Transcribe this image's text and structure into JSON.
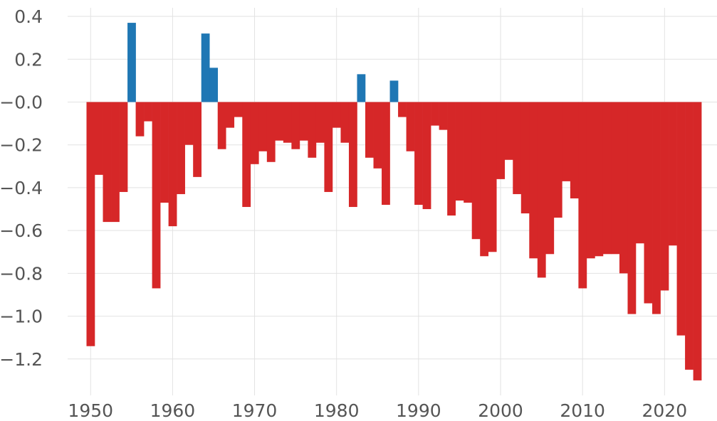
{
  "chart_data": {
    "type": "bar",
    "title": "",
    "xlabel": "",
    "ylabel": "",
    "xlim": [
      1947.2,
      2026.4
    ],
    "ylim": [
      -1.37,
      0.44
    ],
    "grid": true,
    "legend": "none",
    "colors": {
      "positive": "#1f77b4",
      "negative": "#d62728",
      "grid": "#e2e2e2",
      "tick_text": "#555555"
    },
    "y_ticks": [
      {
        "value": 0.4,
        "label": "0.4"
      },
      {
        "value": 0.2,
        "label": "0.2"
      },
      {
        "value": 0.0,
        "label": "−0.0"
      },
      {
        "value": -0.2,
        "label": "−0.2"
      },
      {
        "value": -0.4,
        "label": "−0.4"
      },
      {
        "value": -0.6,
        "label": "−0.6"
      },
      {
        "value": -0.8,
        "label": "−0.8"
      },
      {
        "value": -1.0,
        "label": "−1.0"
      },
      {
        "value": -1.2,
        "label": "−1.2"
      }
    ],
    "x_ticks": [
      {
        "value": 1950,
        "label": "1950"
      },
      {
        "value": 1960,
        "label": "1960"
      },
      {
        "value": 1970,
        "label": "1970"
      },
      {
        "value": 1980,
        "label": "1980"
      },
      {
        "value": 1990,
        "label": "1990"
      },
      {
        "value": 2000,
        "label": "2000"
      },
      {
        "value": 2010,
        "label": "2010"
      },
      {
        "value": 2020,
        "label": "2020"
      }
    ],
    "x": [
      1950,
      1951,
      1952,
      1953,
      1954,
      1955,
      1956,
      1957,
      1958,
      1959,
      1960,
      1961,
      1962,
      1963,
      1964,
      1965,
      1966,
      1967,
      1968,
      1969,
      1970,
      1971,
      1972,
      1973,
      1974,
      1975,
      1976,
      1977,
      1978,
      1979,
      1980,
      1981,
      1982,
      1983,
      1984,
      1985,
      1986,
      1987,
      1988,
      1989,
      1990,
      1991,
      1992,
      1993,
      1994,
      1995,
      1996,
      1997,
      1998,
      1999,
      2000,
      2001,
      2002,
      2003,
      2004,
      2005,
      2006,
      2007,
      2008,
      2009,
      2010,
      2011,
      2012,
      2013,
      2014,
      2015,
      2016,
      2017,
      2018,
      2019,
      2020,
      2021,
      2022,
      2023,
      2024
    ],
    "values": [
      -1.14,
      -0.34,
      -0.56,
      -0.56,
      -0.42,
      0.37,
      -0.16,
      -0.09,
      -0.87,
      -0.47,
      -0.58,
      -0.43,
      -0.2,
      -0.35,
      0.32,
      0.16,
      -0.22,
      -0.12,
      -0.07,
      -0.49,
      -0.29,
      -0.23,
      -0.28,
      -0.18,
      -0.19,
      -0.22,
      -0.18,
      -0.26,
      -0.19,
      -0.42,
      -0.12,
      -0.19,
      -0.49,
      0.13,
      -0.26,
      -0.31,
      -0.48,
      0.1,
      -0.07,
      -0.23,
      -0.48,
      -0.5,
      -0.11,
      -0.13,
      -0.53,
      -0.46,
      -0.47,
      -0.64,
      -0.72,
      -0.7,
      -0.36,
      -0.27,
      -0.43,
      -0.52,
      -0.73,
      -0.82,
      -0.71,
      -0.54,
      -0.37,
      -0.45,
      -0.87,
      -0.73,
      -0.72,
      -0.71,
      -0.71,
      -0.8,
      -0.99,
      -0.66,
      -0.94,
      -0.99,
      -0.88,
      -0.67,
      -1.09,
      -1.25,
      -1.3
    ]
  }
}
